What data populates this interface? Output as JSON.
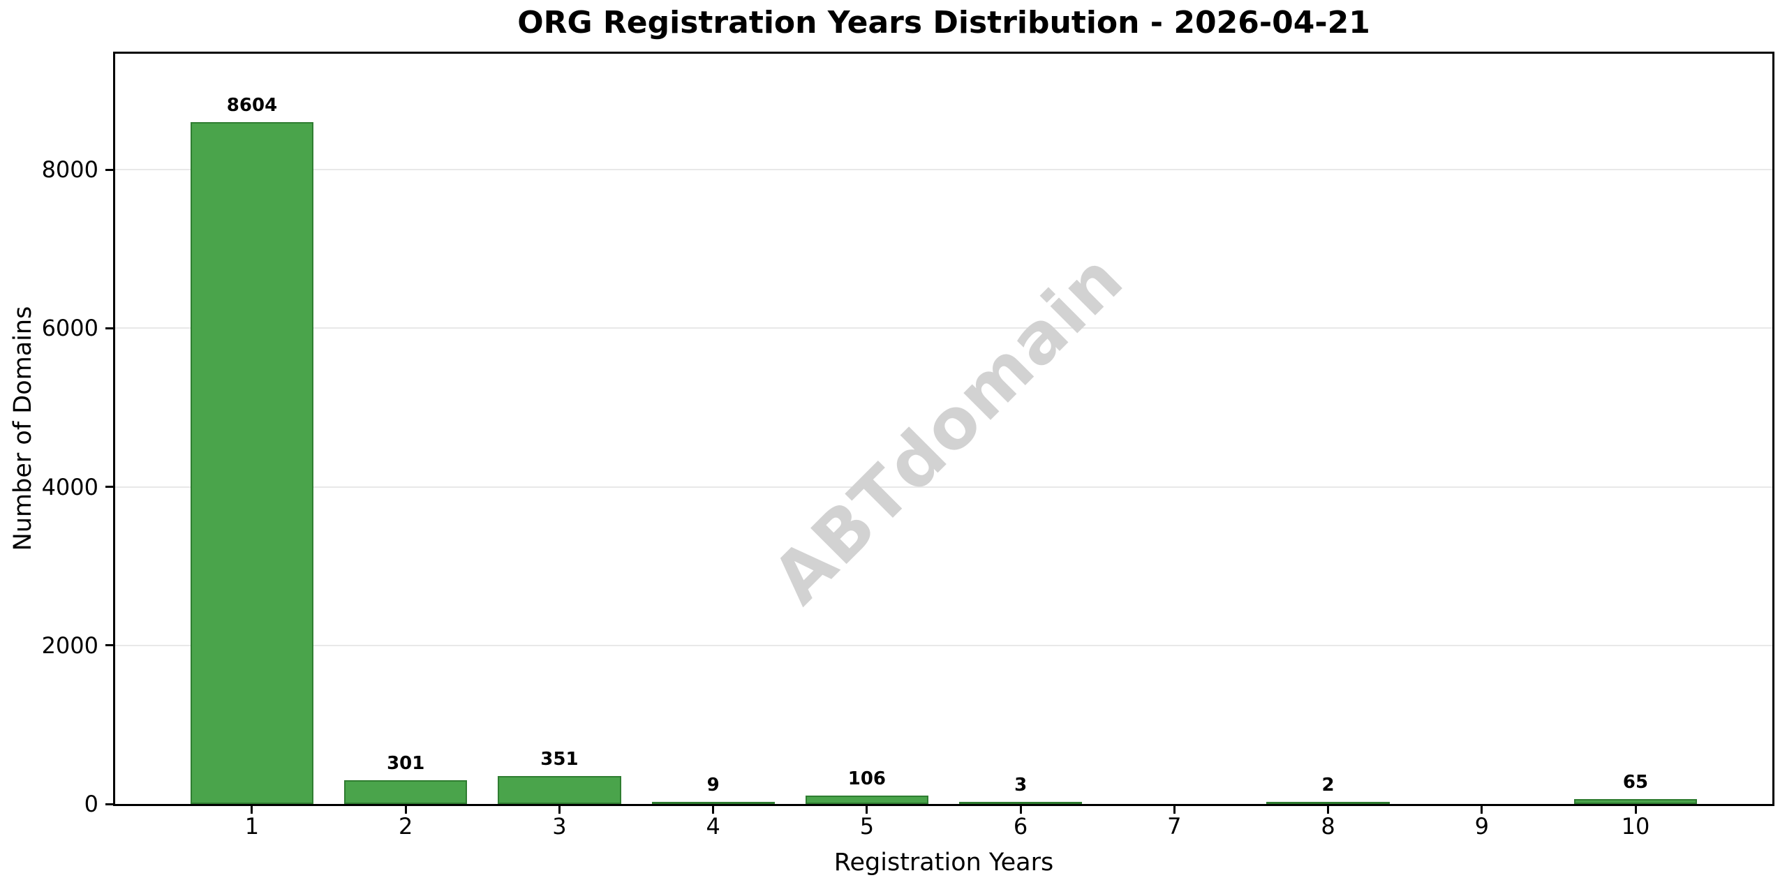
{
  "figure": {
    "background": "#ffffff"
  },
  "chart_data": {
    "type": "bar",
    "title": "ORG Registration Years Distribution - 2026-04-21",
    "xlabel": "Registration Years",
    "ylabel": "Number of Domains",
    "categories": [
      1,
      2,
      3,
      4,
      5,
      6,
      7,
      8,
      9,
      10
    ],
    "values": [
      8604,
      301,
      351,
      9,
      106,
      3,
      0,
      2,
      0,
      65
    ],
    "value_labels_shown_for_positive_only": true,
    "xlim": [
      0.11,
      10.89
    ],
    "ylim": [
      0,
      9464
    ],
    "yticks": [
      0,
      2000,
      4000,
      6000,
      8000
    ],
    "bar_width_units": 0.8,
    "grid": "horizontal",
    "legend": "none",
    "colors": {
      "bar_fill": "#4aa44b",
      "bar_edge": "#2f7d31",
      "gridline": "#e8e8e8",
      "spine": "#000000",
      "text": "#000000"
    }
  },
  "watermark": {
    "text": "ABTdomain",
    "color": "#d2d2d2",
    "rotation_deg": -45
  }
}
